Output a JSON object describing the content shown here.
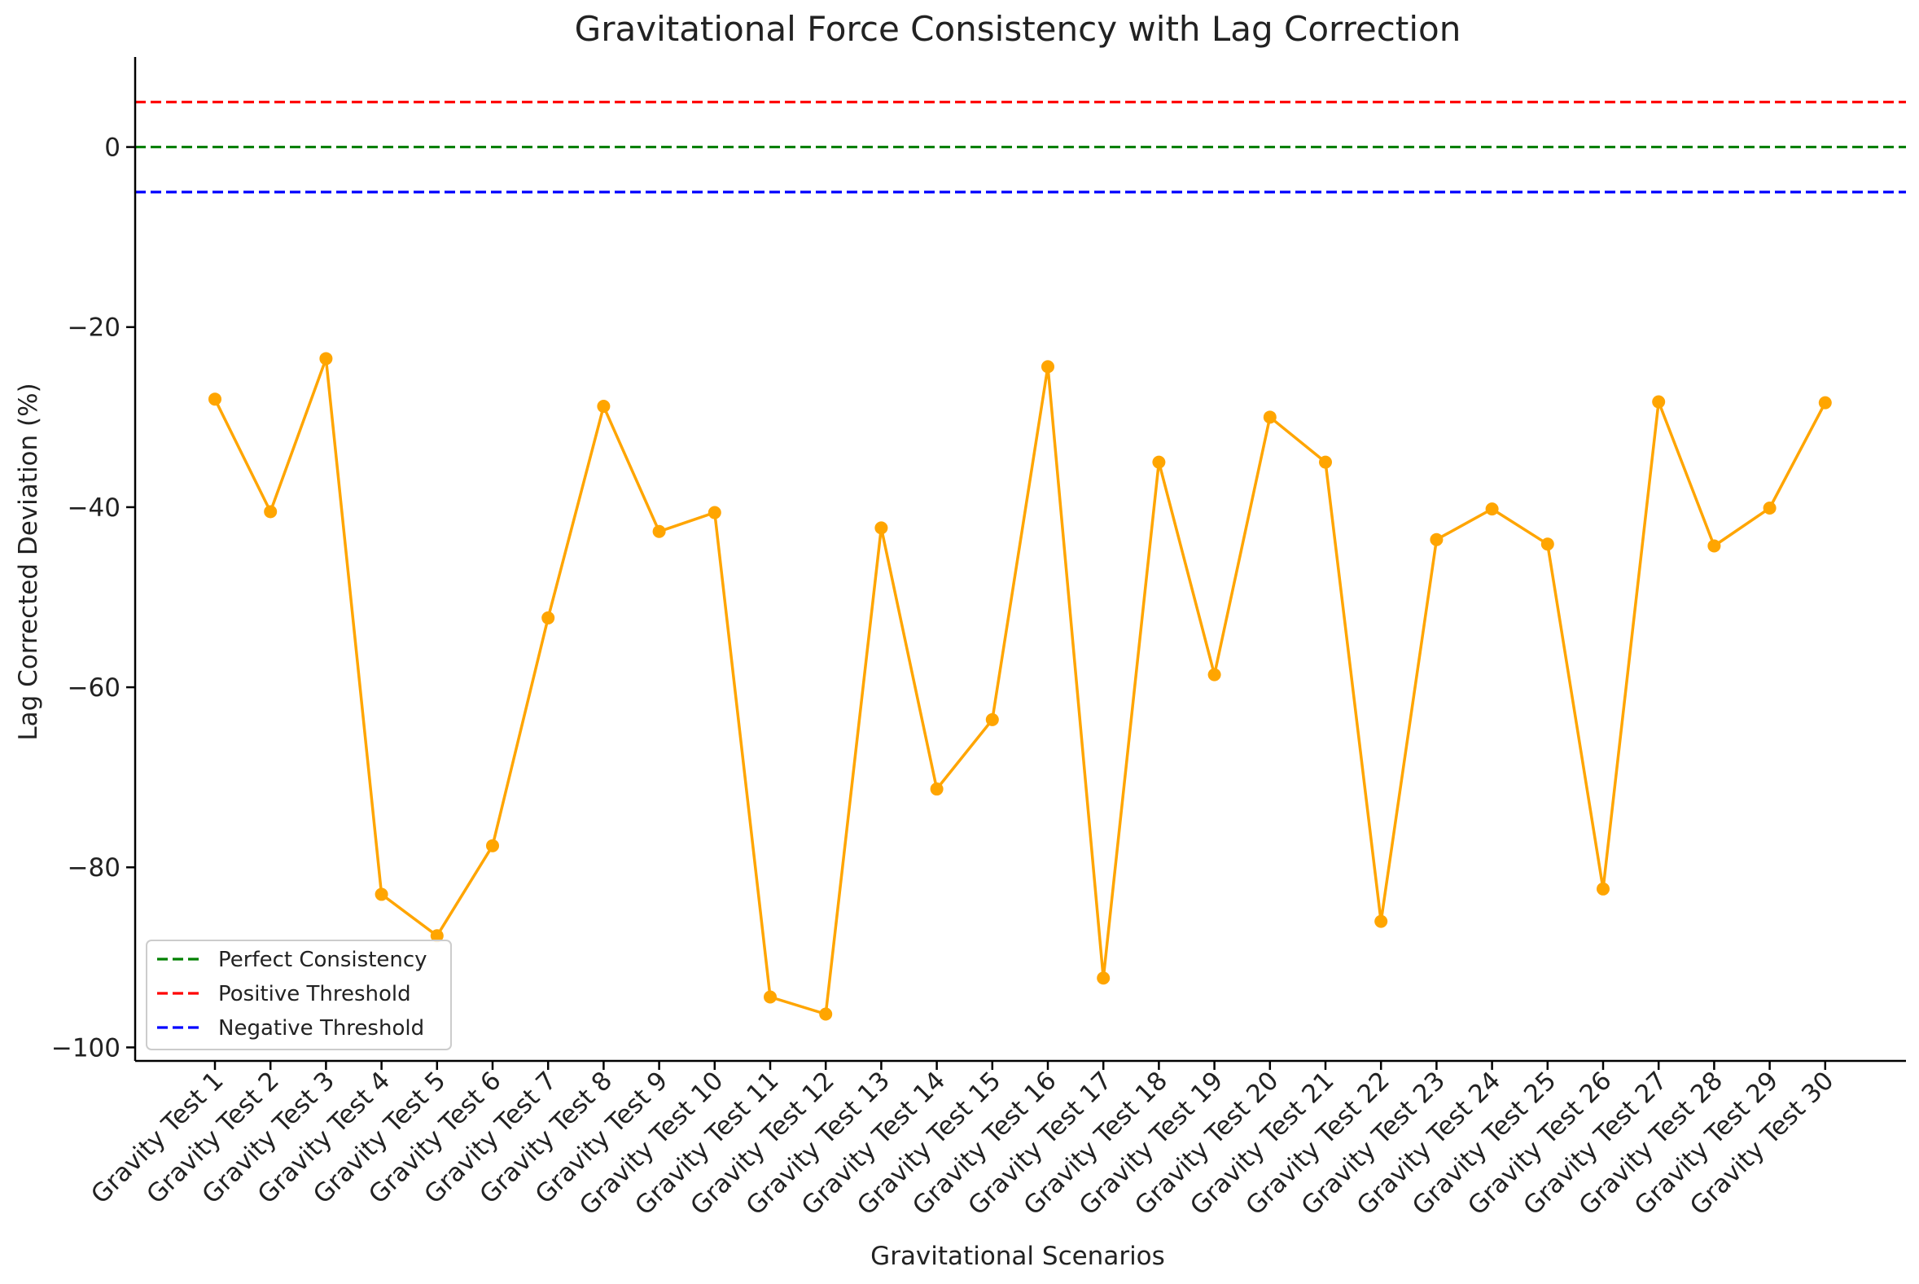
{
  "chart_data": {
    "type": "line",
    "title": "Gravitational Force Consistency with Lag Correction",
    "xlabel": "Gravitational Scenarios",
    "ylabel": "Lag Corrected Deviation (%)",
    "ylim": [
      -101.5,
      10
    ],
    "yticks": [
      0,
      -20,
      -40,
      -60,
      -80,
      -100
    ],
    "ytick_labels": [
      "0",
      "−20",
      "−40",
      "−60",
      "−80",
      "−100"
    ],
    "grid": false,
    "legend_position": "lower-left",
    "categories": [
      "Gravity Test 1",
      "Gravity Test 2",
      "Gravity Test 3",
      "Gravity Test 4",
      "Gravity Test 5",
      "Gravity Test 6",
      "Gravity Test 7",
      "Gravity Test 8",
      "Gravity Test 9",
      "Gravity Test 10",
      "Gravity Test 11",
      "Gravity Test 12",
      "Gravity Test 13",
      "Gravity Test 14",
      "Gravity Test 15",
      "Gravity Test 16",
      "Gravity Test 17",
      "Gravity Test 18",
      "Gravity Test 19",
      "Gravity Test 20",
      "Gravity Test 21",
      "Gravity Test 22",
      "Gravity Test 23",
      "Gravity Test 24",
      "Gravity Test 25",
      "Gravity Test 26",
      "Gravity Test 27",
      "Gravity Test 28",
      "Gravity Test 29",
      "Gravity Test 30"
    ],
    "series": [
      {
        "color": "#ffa500",
        "values": [
          -28.0,
          -40.5,
          -23.5,
          -83.0,
          -87.6,
          -77.6,
          -52.3,
          -28.8,
          -42.7,
          -40.6,
          -94.4,
          -96.3,
          -42.3,
          -71.3,
          -63.6,
          -24.4,
          -92.3,
          -35.0,
          -58.6,
          -30.0,
          -35.0,
          -86.0,
          -43.6,
          -40.2,
          -44.1,
          -82.4,
          -28.3,
          -44.3,
          -40.1,
          -28.4
        ]
      }
    ],
    "reference_lines": [
      {
        "name": "Perfect Consistency",
        "y": 0,
        "color": "#008000"
      },
      {
        "name": "Positive Threshold",
        "y": 5,
        "color": "#ff0000"
      },
      {
        "name": "Negative Threshold",
        "y": -5,
        "color": "#0000ff"
      }
    ]
  }
}
